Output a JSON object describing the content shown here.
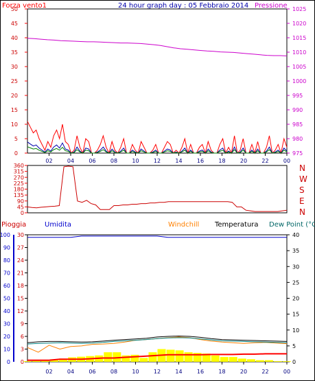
{
  "header": {
    "title": "24 hour graph day : 05 Febbraio 2014",
    "left_label": "Forza vento1",
    "right_label": "Pressione"
  },
  "direction_labels": [
    "N",
    "W",
    "S",
    "E",
    "N"
  ],
  "legend": {
    "rain": "Pioggia",
    "humidity": "Umidita",
    "windchill": "Windchill",
    "temperature": "Temperatura",
    "dewpoint": "Dew Point (°C"
  },
  "colors": {
    "wind": "#ff0000",
    "wind_gust": "#0000aa",
    "wind_avg": "#008000",
    "pressure": "#cc00cc",
    "direction": "#cc0000",
    "humidity": "#0000cc",
    "temperature": "#000000",
    "dewpoint": "#008080",
    "windchill": "#ff8000",
    "rain_rate": "#ffff00",
    "rain_total": "#ff0000"
  },
  "chart_data": [
    {
      "type": "line",
      "x_ticks": [
        "02",
        "04",
        "06",
        "08",
        "10",
        "12",
        "14",
        "16",
        "18",
        "20",
        "22",
        "00"
      ],
      "y_left_ticks": [
        0,
        5,
        10,
        15,
        20,
        25,
        30,
        35,
        40,
        45,
        50
      ],
      "y_right_ticks": [
        975,
        980,
        985,
        990,
        995,
        1000,
        1005,
        1010,
        1015,
        1020,
        1025
      ],
      "ylim_left": [
        0,
        50
      ],
      "ylim_right": [
        975,
        1025
      ],
      "series": [
        {
          "name": "Forza vento1",
          "axis": "left",
          "values": [
            11,
            9,
            7,
            8,
            5,
            3,
            1,
            4,
            2,
            6,
            8,
            5,
            10,
            4,
            3,
            0,
            1,
            6,
            2,
            0,
            5,
            4,
            0,
            0,
            1,
            3,
            6,
            2,
            0,
            4,
            1,
            0,
            2,
            5,
            0,
            0,
            3,
            1,
            0,
            4,
            2,
            0,
            0,
            1,
            3,
            0,
            0,
            2,
            4,
            3,
            0,
            1,
            0,
            2,
            5,
            0,
            3,
            0,
            0,
            2,
            3,
            0,
            4,
            1,
            0,
            0,
            3,
            5,
            0,
            2,
            0,
            6,
            0,
            1,
            5,
            0,
            0,
            3,
            0,
            4,
            0,
            0,
            2,
            6,
            0,
            1,
            3,
            0,
            5,
            2
          ]
        },
        {
          "name": "Pressione",
          "axis": "right",
          "values": [
            1014.8,
            1014.7,
            1014.5,
            1014.3,
            1014.2,
            1014.0,
            1013.9,
            1013.8,
            1013.7,
            1013.6,
            1013.6,
            1013.5,
            1013.4,
            1013.3,
            1013.2,
            1013.2,
            1013.1,
            1013.0,
            1012.8,
            1012.6,
            1012.3,
            1011.9,
            1011.5,
            1011.2,
            1011.0,
            1010.8,
            1010.6,
            1010.4,
            1010.3,
            1010.1,
            1010.0,
            1009.9,
            1009.7,
            1009.5,
            1009.3,
            1009.1,
            1008.9,
            1008.8,
            1008.8,
            1008.7
          ]
        }
      ]
    },
    {
      "type": "line",
      "y_ticks": [
        0,
        45,
        90,
        135,
        180,
        225,
        270,
        315,
        360
      ],
      "ylim": [
        0,
        360
      ],
      "series": [
        {
          "values": [
            45,
            40,
            38,
            42,
            45,
            48,
            50,
            55,
            350,
            355,
            350,
            90,
            80,
            95,
            70,
            60,
            25,
            25,
            25,
            55,
            55,
            60,
            60,
            65,
            65,
            70,
            70,
            75,
            75,
            80,
            80,
            85,
            85,
            85,
            85,
            85,
            85,
            85,
            85,
            85,
            85,
            85,
            85,
            85,
            85,
            80,
            45,
            45,
            20,
            15,
            10,
            10,
            10,
            10,
            10,
            10,
            15,
            20
          ]
        }
      ]
    },
    {
      "type": "line",
      "y_left_ticks": [
        0,
        10,
        20,
        30,
        40,
        50,
        60,
        70,
        80,
        90,
        100
      ],
      "y_right_ticks": [
        0,
        5,
        10,
        15,
        20,
        25,
        30,
        35,
        40
      ],
      "ylim_left": [
        0,
        100
      ],
      "ylim_right": [
        0,
        40
      ],
      "series": [
        {
          "name": "Umidita",
          "axis": "left",
          "values": [
            98,
            98,
            98,
            98,
            98,
            99,
            99,
            99,
            99,
            99,
            99,
            99,
            99,
            98,
            98,
            98,
            98,
            98,
            98,
            98,
            98,
            98,
            98,
            98,
            98
          ]
        },
        {
          "name": "Temperatura",
          "axis": "right",
          "values": [
            6.0,
            6.3,
            6.4,
            6.4,
            6.3,
            6.2,
            6.3,
            6.5,
            6.8,
            7.0,
            7.2,
            7.4,
            7.8,
            8.0,
            8.1,
            8.0,
            7.7,
            7.3,
            7.0,
            6.9,
            6.8,
            6.7,
            6.6,
            6.5,
            6.4
          ]
        },
        {
          "name": "Dew Point (°C",
          "axis": "right",
          "values": [
            5.6,
            5.8,
            5.9,
            6.0,
            5.9,
            5.8,
            5.9,
            6.1,
            6.4,
            6.6,
            6.8,
            7.0,
            7.3,
            7.5,
            7.6,
            7.5,
            7.2,
            6.9,
            6.6,
            6.5,
            6.4,
            6.3,
            6.2,
            6.1,
            6.0
          ]
        },
        {
          "name": "Windchill",
          "axis": "right",
          "values": [
            4.5,
            3.0,
            5.2,
            4.0,
            4.8,
            5.0,
            5.5,
            5.6,
            5.8,
            6.2,
            6.8,
            7.0,
            7.3,
            7.6,
            7.8,
            7.6,
            7.0,
            6.5,
            6.2,
            6.0,
            5.8,
            6.0,
            6.1,
            5.9,
            5.7
          ]
        },
        {
          "name": "Pioggia",
          "axis": "right",
          "values": [
            0.2,
            0.3,
            0.5,
            0.8,
            1.0,
            1.4,
            1.6,
            1.8,
            2.0,
            3.0,
            3.0,
            2.0,
            2.2,
            1.2,
            3.0,
            4.0,
            3.8,
            3.6,
            3.0,
            2.8,
            2.6,
            2.0,
            1.5,
            1.5,
            1.0,
            0.8,
            0.5,
            0.5,
            0.2,
            0.2
          ]
        },
        {
          "name": "Pioggia",
          "axis": "right",
          "values": [
            0.5,
            0.5,
            0.5,
            0.8,
            0.8,
            0.8,
            1.0,
            1.2,
            1.2,
            1.4,
            1.6,
            1.8,
            2.0,
            2.2,
            2.2,
            2.2,
            2.2,
            2.3,
            2.3,
            2.3,
            2.4,
            2.4,
            2.5,
            2.5,
            2.5
          ]
        }
      ]
    }
  ]
}
